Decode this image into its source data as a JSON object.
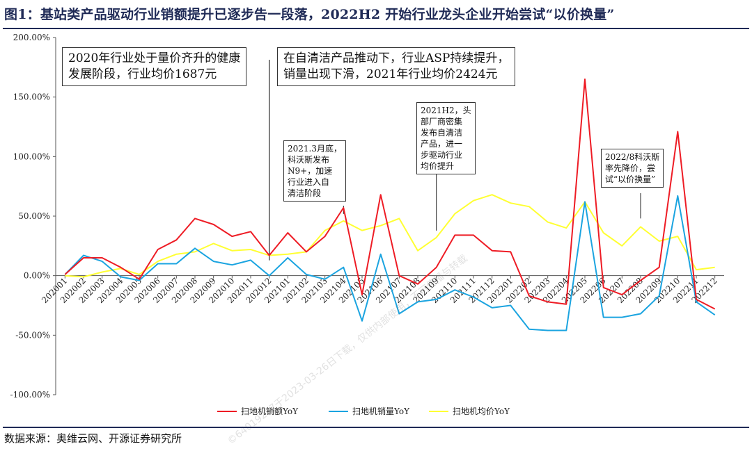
{
  "title": "图1：基站类产品驱动行业销额提升已逐步告一段落，2022H2 开始行业龙头企业开始尝试“以价换量”",
  "source": "数据来源：奥维云网、开源证券研究所",
  "watermarks": [
    "©64019287于2023-03-26日下载，仅供内部使用，不可传播与转载"
  ],
  "annotations": [
    {
      "id": "a1",
      "lines": [
        "2020年行业处于量价齐升的健康",
        "发展阶段，行业均价1687元"
      ]
    },
    {
      "id": "a2",
      "lines": [
        "在自清洁产品推动下，行业ASP持续提升，",
        "销量出现下滑，2021年行业均价2424元"
      ]
    },
    {
      "id": "a3",
      "lines": [
        "2021.3月底，",
        "科沃斯发布",
        "N9+，加速",
        "行业进入自",
        "清洁阶段"
      ]
    },
    {
      "id": "a4",
      "lines": [
        "2021H2，头",
        "部厂商密集",
        "发布自清洁",
        "产品，进一",
        "步驱动行业",
        "均价提升"
      ]
    },
    {
      "id": "a5",
      "lines": [
        "2022/8科沃斯",
        "率先降价，尝",
        "试“以价换量”"
      ]
    }
  ],
  "chart_data": {
    "type": "line",
    "title": "",
    "xlabel": "",
    "ylabel": "",
    "ylim": [
      -100,
      200
    ],
    "yticks": [
      -100,
      -50,
      0,
      50,
      100,
      150,
      200
    ],
    "ytick_labels": [
      "-100.00%",
      "-50.00%",
      "0.00%",
      "50.00%",
      "100.00%",
      "150.00%",
      "200.00%"
    ],
    "grid": false,
    "legend_position": "bottom",
    "categories": [
      "202001",
      "202002",
      "202003",
      "202004",
      "202005",
      "202006",
      "202007",
      "202008",
      "202009",
      "202010",
      "202011",
      "202012",
      "202101",
      "202102",
      "202103",
      "202104",
      "202105",
      "202106",
      "202107",
      "202108",
      "202109",
      "202110",
      "202111",
      "202112",
      "202201",
      "202202",
      "202203",
      "202204",
      "202205",
      "202206",
      "202207",
      "202208",
      "202209",
      "202210",
      "202211",
      "202212"
    ],
    "series": [
      {
        "name": "扫地机销额YoY",
        "color": "#ee1c25",
        "values": [
          1,
          15,
          15,
          7,
          -3,
          22,
          30,
          48,
          43,
          33,
          37,
          17,
          36,
          20,
          33,
          57,
          -16,
          68,
          0,
          -7,
          7,
          34,
          34,
          21,
          20,
          -17,
          -22,
          -24,
          165,
          -10,
          -16,
          -4,
          7,
          121,
          -20,
          -28
        ]
      },
      {
        "name": "扫地机销量YoY",
        "color": "#1ba4e0",
        "values": [
          1,
          17,
          12,
          -1,
          -4,
          10,
          10,
          23,
          12,
          9,
          13,
          0,
          15,
          1,
          -3,
          7,
          -38,
          18,
          -32,
          -22,
          -20,
          -12,
          -18,
          -27,
          -25,
          -45,
          -46,
          -46,
          62,
          -35,
          -35,
          -32,
          -17,
          67,
          -22,
          -33
        ]
      },
      {
        "name": "扫地机均价YoY",
        "color": "#ffff33",
        "values": [
          0,
          -1,
          3,
          6,
          1,
          12,
          18,
          20,
          27,
          21,
          22,
          17,
          18,
          20,
          38,
          46,
          38,
          42,
          48,
          21,
          32,
          52,
          63,
          68,
          61,
          58,
          45,
          40,
          62,
          36,
          25,
          41,
          29,
          33,
          5,
          7
        ]
      }
    ],
    "event_marker": {
      "category": "202012"
    }
  }
}
